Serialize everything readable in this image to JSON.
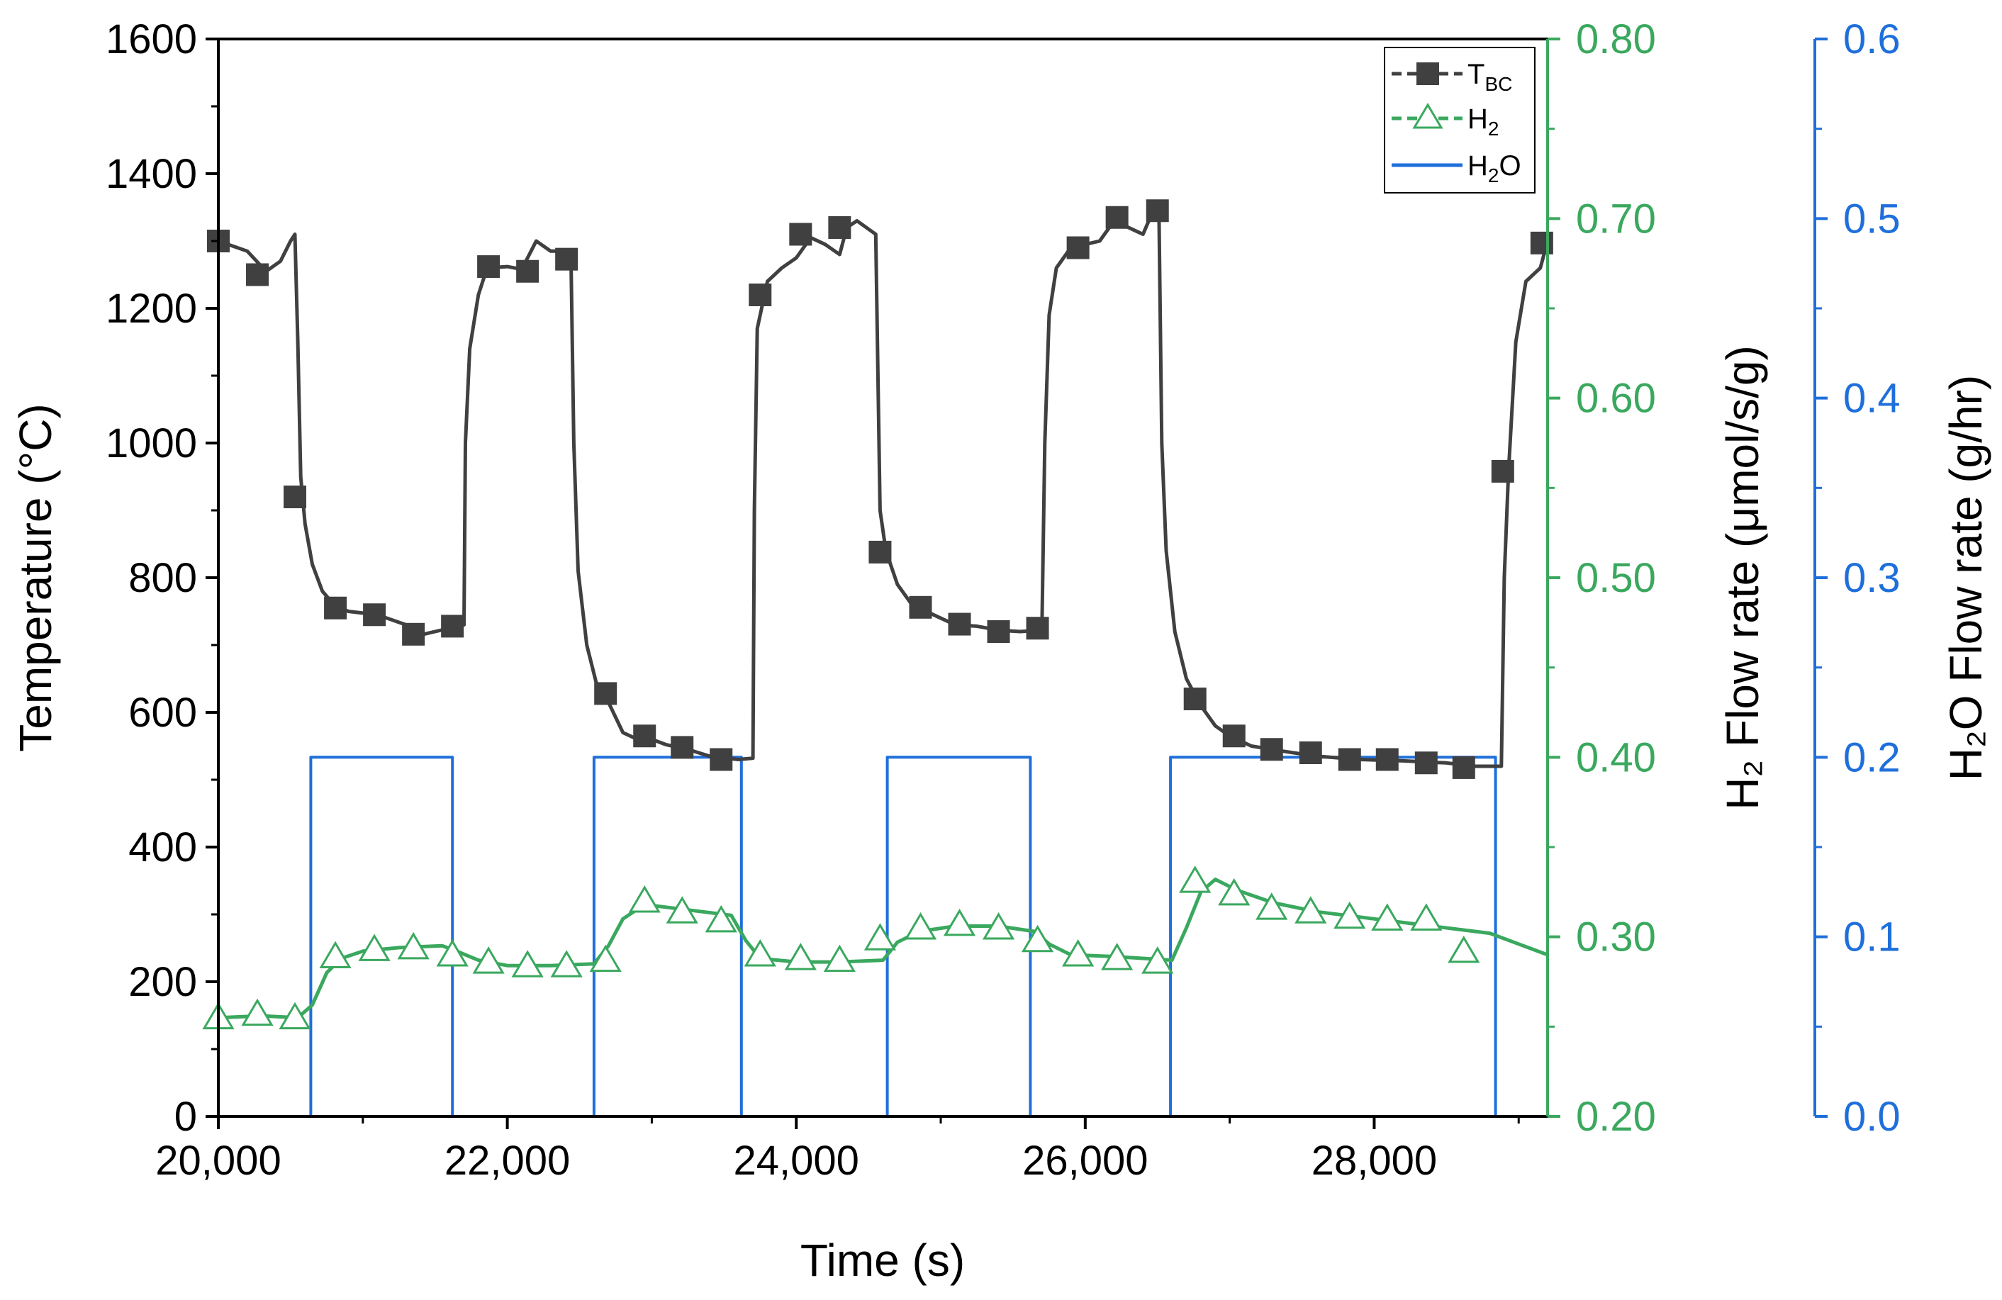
{
  "chart_data": {
    "type": "line",
    "xlabel": "Time (s)",
    "ylabel_left": "Temperature (°C)",
    "ylabel_right1": "H₂ Flow rate (μmol/s/g)",
    "ylabel_right2": "H₂O Flow rate (g/hr)",
    "xlim": [
      20000,
      29200
    ],
    "ylim_left": [
      0,
      1600
    ],
    "ylim_right1": [
      0.2,
      0.8
    ],
    "ylim_right2": [
      0.0,
      0.6
    ],
    "x_ticks": [
      "20,000",
      "22,000",
      "24,000",
      "26,000",
      "28,000"
    ],
    "x_tick_values": [
      20000,
      22000,
      24000,
      26000,
      28000
    ],
    "y_ticks_left": [
      "0",
      "200",
      "400",
      "600",
      "800",
      "1000",
      "1200",
      "1400",
      "1600"
    ],
    "y_ticks_right1": [
      "0.20",
      "0.30",
      "0.40",
      "0.50",
      "0.60",
      "0.70",
      "0.80"
    ],
    "y_ticks_right2": [
      "0.0",
      "0.1",
      "0.2",
      "0.3",
      "0.4",
      "0.5",
      "0.6"
    ],
    "legend": [
      {
        "label": "T",
        "sub": "BC"
      },
      {
        "label": "H",
        "sub": "2"
      },
      {
        "label": "H",
        "sub": "2",
        "tail": "O"
      }
    ],
    "colors": {
      "tbc": "#404040",
      "h2": "#3aa85e",
      "h2o": "#1f6fdb",
      "axis": "#000000"
    },
    "series": [
      {
        "name": "TBC",
        "axis": "left",
        "line": [
          [
            20000,
            1300
          ],
          [
            20200,
            1285
          ],
          [
            20330,
            1255
          ],
          [
            20430,
            1270
          ],
          [
            20500,
            1300
          ],
          [
            20530,
            1310
          ],
          [
            20550,
            1150
          ],
          [
            20570,
            950
          ],
          [
            20600,
            880
          ],
          [
            20650,
            820
          ],
          [
            20720,
            780
          ],
          [
            20800,
            760
          ],
          [
            20900,
            750
          ],
          [
            21100,
            745
          ],
          [
            21300,
            730
          ],
          [
            21400,
            715
          ],
          [
            21500,
            720
          ],
          [
            21600,
            725
          ],
          [
            21700,
            730
          ],
          [
            21710,
            1000
          ],
          [
            21740,
            1140
          ],
          [
            21800,
            1220
          ],
          [
            21860,
            1260
          ],
          [
            22000,
            1262
          ],
          [
            22100,
            1258
          ],
          [
            22200,
            1300
          ],
          [
            22300,
            1285
          ],
          [
            22440,
            1285
          ],
          [
            22460,
            1000
          ],
          [
            22490,
            810
          ],
          [
            22550,
            700
          ],
          [
            22620,
            640
          ],
          [
            22700,
            615
          ],
          [
            22800,
            570
          ],
          [
            22900,
            560
          ],
          [
            23000,
            560
          ],
          [
            23100,
            552
          ],
          [
            23250,
            545
          ],
          [
            23400,
            535
          ],
          [
            23600,
            530
          ],
          [
            23700,
            532
          ],
          [
            23710,
            900
          ],
          [
            23730,
            1170
          ],
          [
            23800,
            1240
          ],
          [
            23900,
            1260
          ],
          [
            24000,
            1275
          ],
          [
            24100,
            1305
          ],
          [
            24200,
            1295
          ],
          [
            24300,
            1280
          ],
          [
            24350,
            1320
          ],
          [
            24420,
            1330
          ],
          [
            24550,
            1310
          ],
          [
            24580,
            900
          ],
          [
            24620,
            840
          ],
          [
            24700,
            790
          ],
          [
            24800,
            760
          ],
          [
            24950,
            745
          ],
          [
            25100,
            730
          ],
          [
            25250,
            728
          ],
          [
            25400,
            722
          ],
          [
            25550,
            720
          ],
          [
            25700,
            722
          ],
          [
            25720,
            1000
          ],
          [
            25750,
            1190
          ],
          [
            25800,
            1260
          ],
          [
            25900,
            1290
          ],
          [
            26000,
            1295
          ],
          [
            26100,
            1300
          ],
          [
            26200,
            1330
          ],
          [
            26350,
            1315
          ],
          [
            26400,
            1310
          ],
          [
            26470,
            1345
          ],
          [
            26510,
            1345
          ],
          [
            26530,
            1000
          ],
          [
            26560,
            840
          ],
          [
            26620,
            720
          ],
          [
            26700,
            650
          ],
          [
            26800,
            610
          ],
          [
            26900,
            580
          ],
          [
            27000,
            565
          ],
          [
            27150,
            550
          ],
          [
            27350,
            543
          ],
          [
            27600,
            535
          ],
          [
            27900,
            530
          ],
          [
            28200,
            528
          ],
          [
            28500,
            525
          ],
          [
            28700,
            520
          ],
          [
            28880,
            520
          ],
          [
            28900,
            800
          ],
          [
            28930,
            960
          ],
          [
            28980,
            1150
          ],
          [
            29050,
            1240
          ],
          [
            29150,
            1260
          ],
          [
            29200,
            1300
          ]
        ],
        "markers": [
          [
            20000,
            1300
          ],
          [
            20270,
            1250
          ],
          [
            20530,
            920
          ],
          [
            20810,
            755
          ],
          [
            21080,
            745
          ],
          [
            21350,
            716
          ],
          [
            21620,
            728
          ],
          [
            21870,
            1262
          ],
          [
            22140,
            1255
          ],
          [
            22410,
            1273
          ],
          [
            22680,
            628
          ],
          [
            22950,
            565
          ],
          [
            23210,
            548
          ],
          [
            23480,
            530
          ],
          [
            23750,
            1220
          ],
          [
            24030,
            1310
          ],
          [
            24300,
            1320
          ],
          [
            24580,
            838
          ],
          [
            24860,
            756
          ],
          [
            25130,
            731
          ],
          [
            25400,
            720
          ],
          [
            25670,
            725
          ],
          [
            25950,
            1290
          ],
          [
            26220,
            1335
          ],
          [
            26500,
            1345
          ],
          [
            26760,
            620
          ],
          [
            27030,
            565
          ],
          [
            27290,
            545
          ],
          [
            27560,
            540
          ],
          [
            27830,
            530
          ],
          [
            28090,
            530
          ],
          [
            28360,
            525
          ],
          [
            28620,
            518
          ],
          [
            28890,
            958
          ],
          [
            29160,
            1297
          ]
        ]
      },
      {
        "name": "H2",
        "axis": "right1",
        "line": [
          [
            20000,
            0.255
          ],
          [
            20300,
            0.256
          ],
          [
            20550,
            0.255
          ],
          [
            20650,
            0.262
          ],
          [
            20750,
            0.28
          ],
          [
            20850,
            0.288
          ],
          [
            21000,
            0.292
          ],
          [
            21250,
            0.294
          ],
          [
            21550,
            0.295
          ],
          [
            21650,
            0.292
          ],
          [
            21800,
            0.287
          ],
          [
            22000,
            0.284
          ],
          [
            22300,
            0.284
          ],
          [
            22600,
            0.285
          ],
          [
            22700,
            0.295
          ],
          [
            22800,
            0.31
          ],
          [
            22950,
            0.318
          ],
          [
            23250,
            0.315
          ],
          [
            23550,
            0.312
          ],
          [
            23650,
            0.298
          ],
          [
            23750,
            0.288
          ],
          [
            24000,
            0.286
          ],
          [
            24300,
            0.286
          ],
          [
            24600,
            0.287
          ],
          [
            24700,
            0.297
          ],
          [
            24850,
            0.303
          ],
          [
            25100,
            0.306
          ],
          [
            25400,
            0.306
          ],
          [
            25650,
            0.303
          ],
          [
            25750,
            0.296
          ],
          [
            25900,
            0.29
          ],
          [
            26200,
            0.289
          ],
          [
            26600,
            0.287
          ],
          [
            26700,
            0.305
          ],
          [
            26800,
            0.325
          ],
          [
            26900,
            0.332
          ],
          [
            27050,
            0.326
          ],
          [
            27300,
            0.319
          ],
          [
            27600,
            0.314
          ],
          [
            28000,
            0.31
          ],
          [
            28400,
            0.306
          ],
          [
            28800,
            0.302
          ],
          [
            29000,
            0.296
          ],
          [
            29200,
            0.29
          ]
        ],
        "markers": [
          [
            20000,
            0.255
          ],
          [
            20270,
            0.257
          ],
          [
            20530,
            0.255
          ],
          [
            20810,
            0.289
          ],
          [
            21080,
            0.293
          ],
          [
            21350,
            0.294
          ],
          [
            21620,
            0.29
          ],
          [
            21870,
            0.286
          ],
          [
            22140,
            0.284
          ],
          [
            22410,
            0.284
          ],
          [
            22680,
            0.287
          ],
          [
            22950,
            0.32
          ],
          [
            23210,
            0.314
          ],
          [
            23480,
            0.309
          ],
          [
            23750,
            0.29
          ],
          [
            24030,
            0.288
          ],
          [
            24300,
            0.287
          ],
          [
            24580,
            0.299
          ],
          [
            24860,
            0.305
          ],
          [
            25130,
            0.307
          ],
          [
            25400,
            0.305
          ],
          [
            25670,
            0.298
          ],
          [
            25950,
            0.29
          ],
          [
            26220,
            0.288
          ],
          [
            26500,
            0.286
          ],
          [
            26760,
            0.331
          ],
          [
            27030,
            0.324
          ],
          [
            27290,
            0.316
          ],
          [
            27560,
            0.314
          ],
          [
            27830,
            0.311
          ],
          [
            28090,
            0.31
          ],
          [
            28360,
            0.31
          ],
          [
            28620,
            0.292
          ]
        ]
      },
      {
        "name": "H2O",
        "axis": "right2",
        "line": [
          [
            20000,
            0.0
          ],
          [
            20640,
            0.0
          ],
          [
            20640,
            0.2
          ],
          [
            21620,
            0.2
          ],
          [
            21620,
            0.0
          ],
          [
            22600,
            0.0
          ],
          [
            22600,
            0.2
          ],
          [
            23620,
            0.2
          ],
          [
            23620,
            0.0
          ],
          [
            24630,
            0.0
          ],
          [
            24630,
            0.2
          ],
          [
            25620,
            0.2
          ],
          [
            25620,
            0.0
          ],
          [
            26590,
            0.0
          ],
          [
            26590,
            0.2
          ],
          [
            28840,
            0.2
          ],
          [
            28840,
            0.0
          ],
          [
            29200,
            0.0
          ]
        ]
      }
    ]
  }
}
